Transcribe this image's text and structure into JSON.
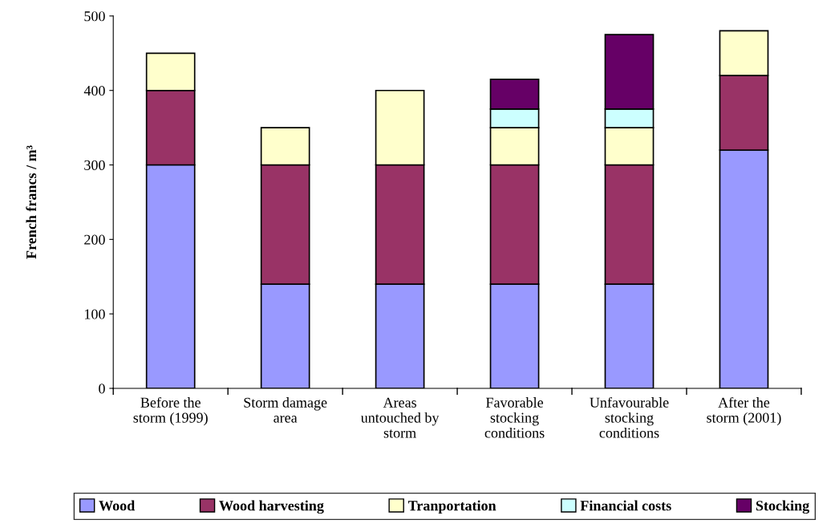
{
  "chart_data": {
    "type": "bar",
    "stacked": true,
    "ylabel": "French francs / m³",
    "categories": [
      "Before the\nstorm (1999)",
      "Storm damage\narea",
      "Areas\nuntouched by\nstorm",
      "Favorable\nstocking\nconditions",
      "Unfavourable\nstocking\nconditions",
      "After the\nstorm (2001)"
    ],
    "series": [
      {
        "name": "Wood",
        "color": "#9999ff",
        "values": [
          300,
          140,
          140,
          140,
          140,
          320
        ]
      },
      {
        "name": "Wood harvesting",
        "color": "#993366",
        "values": [
          100,
          160,
          160,
          160,
          160,
          100
        ]
      },
      {
        "name": "Tranportation",
        "color": "#ffffcc",
        "values": [
          50,
          50,
          100,
          50,
          50,
          60
        ]
      },
      {
        "name": "Financial costs",
        "color": "#ccffff",
        "values": [
          null,
          null,
          null,
          25,
          25,
          null
        ]
      },
      {
        "name": "Stocking",
        "color": "#660066",
        "values": [
          null,
          null,
          null,
          40,
          100,
          null
        ]
      }
    ],
    "ylim": [
      0,
      500
    ],
    "yticks": [
      0,
      100,
      200,
      300,
      400,
      500
    ],
    "grid": false,
    "legend": "bottom"
  }
}
